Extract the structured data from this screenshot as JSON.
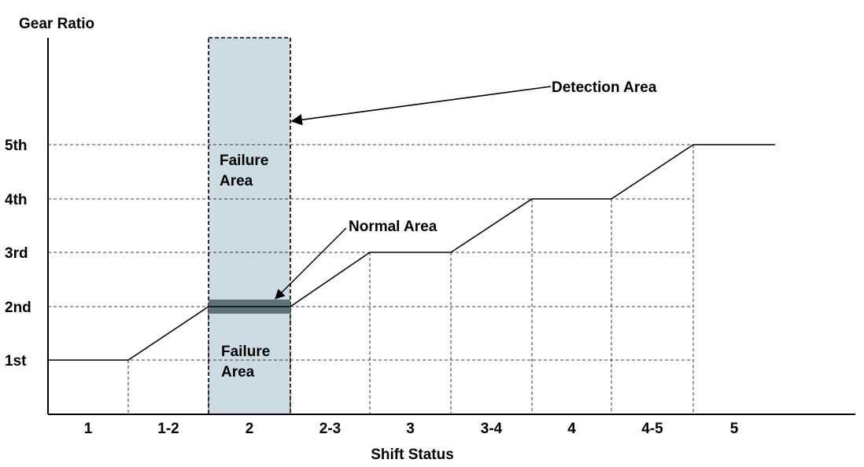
{
  "chart_data": {
    "type": "line",
    "ylabel": "Gear Ratio",
    "xlabel": "Shift Status",
    "y_levels": [
      "1st",
      "2nd",
      "3rd",
      "4th",
      "5th"
    ],
    "categories": [
      "1",
      "1-2",
      "2",
      "2-3",
      "3",
      "3-4",
      "4",
      "4-5",
      "5"
    ],
    "series": [
      {
        "points": [
          {
            "x": "1",
            "level": "1st"
          },
          {
            "x": "1-2",
            "level": "1st"
          },
          {
            "x": "2",
            "level": "2nd"
          },
          {
            "x": "2-3",
            "level": "2nd"
          },
          {
            "x": "3",
            "level": "3rd"
          },
          {
            "x": "3-4",
            "level": "3rd"
          },
          {
            "x": "4",
            "level": "4th"
          },
          {
            "x": "4-5",
            "level": "4th"
          },
          {
            "x": "5",
            "level": "5th"
          },
          {
            "x": "end",
            "level": "5th"
          }
        ]
      }
    ],
    "annotations": {
      "detection_area": "Detection Area",
      "failure_area_upper": [
        "Failure",
        "Area"
      ],
      "failure_area_lower": [
        "Failure",
        "Area"
      ],
      "normal_area": "Normal Area",
      "detection_category": "2"
    },
    "grid": "dashed guide lines",
    "colors": {
      "detection_fill": "#cddbe2",
      "normal_band": "#5c7276",
      "line": "#000000"
    }
  }
}
